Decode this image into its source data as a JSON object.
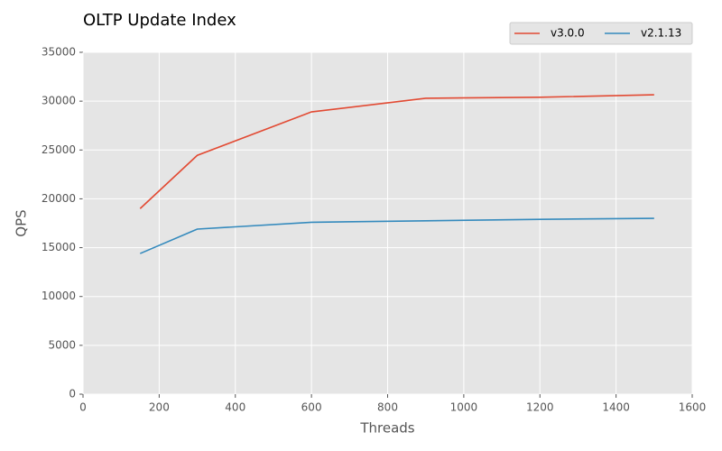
{
  "chart_data": {
    "type": "line",
    "title": "OLTP Update Index",
    "x_label": "Threads",
    "y_label": "QPS",
    "x": [
      150,
      300,
      600,
      900,
      1200,
      1500
    ],
    "series": [
      {
        "name": "v3.0.0",
        "color": "#e24a33",
        "values": [
          19000,
          24450,
          28900,
          30300,
          30400,
          30650
        ]
      },
      {
        "name": "v2.1.13",
        "color": "#348abd",
        "values": [
          14400,
          16900,
          17600,
          17750,
          17900,
          18000
        ]
      }
    ],
    "xlim": [
      0,
      1600
    ],
    "xticks": [
      0,
      200,
      400,
      600,
      800,
      1000,
      1200,
      1400,
      1600
    ],
    "ylim": [
      0,
      35000
    ],
    "yticks": [
      0,
      5000,
      10000,
      15000,
      20000,
      25000,
      30000,
      35000
    ],
    "grid": true,
    "legend": "top-right"
  }
}
